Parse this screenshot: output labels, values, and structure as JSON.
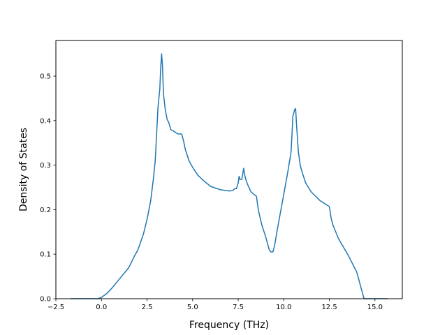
{
  "chart_data": {
    "type": "line",
    "title": "",
    "xlabel": "Frequency (THz)",
    "ylabel": "Density of States",
    "xlim": [
      -2.5,
      16.5
    ],
    "ylim": [
      0.0,
      0.58
    ],
    "grid": false,
    "legend": "none",
    "x_ticks": [
      -2.5,
      0.0,
      2.5,
      5.0,
      7.5,
      10.0,
      12.5,
      15.0
    ],
    "x_tick_labels": [
      "−2.5",
      "0.0",
      "2.5",
      "5.0",
      "7.5",
      "10.0",
      "12.5",
      "15.0"
    ],
    "y_ticks": [
      0.0,
      0.1,
      0.2,
      0.3,
      0.4,
      0.5
    ],
    "y_tick_labels": [
      "0.0",
      "0.1",
      "0.2",
      "0.3",
      "0.4",
      "0.5"
    ],
    "series": [
      {
        "color": "#1f77b4",
        "x": [
          -1.7,
          -1.0,
          -0.2,
          0.0,
          0.3,
          0.6,
          1.0,
          1.5,
          1.8,
          2.0,
          2.3,
          2.5,
          2.7,
          2.85,
          2.95,
          3.0,
          3.1,
          3.2,
          3.25,
          3.3,
          3.35,
          3.4,
          3.5,
          3.6,
          3.7,
          3.8,
          4.0,
          4.2,
          4.4,
          4.5,
          4.6,
          4.8,
          5.0,
          5.3,
          5.6,
          6.0,
          6.5,
          7.0,
          7.2,
          7.3,
          7.4,
          7.5,
          7.55,
          7.6,
          7.7,
          7.8,
          7.85,
          7.9,
          8.0,
          8.2,
          8.5,
          8.6,
          8.8,
          9.0,
          9.2,
          9.3,
          9.4,
          9.5,
          9.6,
          9.8,
          10.0,
          10.2,
          10.4,
          10.5,
          10.6,
          10.65,
          10.7,
          10.8,
          10.9,
          11.0,
          11.2,
          11.5,
          12.0,
          12.5,
          12.6,
          12.7,
          13.0,
          13.5,
          14.0,
          14.2,
          14.3,
          14.4,
          15.0,
          15.7
        ],
        "y": [
          0.0,
          0.0,
          0.0,
          0.003,
          0.012,
          0.025,
          0.045,
          0.07,
          0.095,
          0.11,
          0.145,
          0.178,
          0.22,
          0.27,
          0.31,
          0.35,
          0.43,
          0.47,
          0.52,
          0.55,
          0.52,
          0.46,
          0.425,
          0.403,
          0.395,
          0.38,
          0.375,
          0.37,
          0.37,
          0.355,
          0.335,
          0.31,
          0.295,
          0.277,
          0.265,
          0.252,
          0.245,
          0.242,
          0.243,
          0.247,
          0.247,
          0.26,
          0.275,
          0.268,
          0.268,
          0.293,
          0.28,
          0.27,
          0.258,
          0.24,
          0.23,
          0.2,
          0.165,
          0.14,
          0.11,
          0.105,
          0.105,
          0.12,
          0.145,
          0.19,
          0.235,
          0.28,
          0.33,
          0.41,
          0.425,
          0.427,
          0.39,
          0.33,
          0.3,
          0.285,
          0.26,
          0.24,
          0.22,
          0.207,
          0.18,
          0.165,
          0.135,
          0.1,
          0.06,
          0.03,
          0.015,
          0.0,
          0.0,
          0.0
        ]
      }
    ]
  }
}
